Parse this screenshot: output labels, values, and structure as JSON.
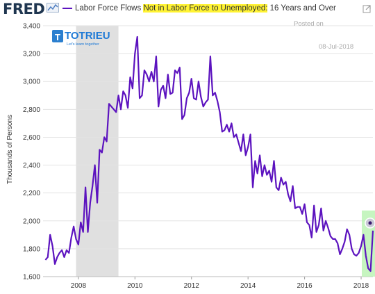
{
  "header": {
    "logo": "FRED",
    "title_parts": [
      "Labor Force Flows ",
      "Not in Labor Force to Unemployed:",
      " 16 Years and Over"
    ],
    "expand_icon": "expand-icon",
    "chart_icon": "line-chart-icon"
  },
  "annotations": {
    "posted_on": "Posted on",
    "date": "08-Jul-2018"
  },
  "watermark": {
    "name": "TOTRIEU",
    "tagline": "Let's learn together"
  },
  "colors": {
    "line": "#5c13bf",
    "recession": "#e0e0e0",
    "highlight": "#fff333",
    "latest_box": "#b8f2b0"
  },
  "chart_data": {
    "type": "line",
    "title": "Labor Force Flows Not in Labor Force to Unemployed: 16 Years and Over",
    "ylabel": "Thousands of Persons",
    "xlabel": "",
    "xlim": [
      "2006-10",
      "2018-06"
    ],
    "ylim": [
      1600,
      3400
    ],
    "y_ticks": [
      1600,
      1800,
      2000,
      2200,
      2400,
      2600,
      2800,
      3000,
      3200,
      3400
    ],
    "y_tick_labels": [
      "1,600",
      "1,800",
      "2,000",
      "2,200",
      "2,400",
      "2,600",
      "2,800",
      "3,000",
      "3,200",
      "3,400"
    ],
    "x_tick_labels": [
      "2008",
      "2010",
      "2012",
      "2014",
      "2016",
      "2018"
    ],
    "grid": true,
    "recession": {
      "start": "2007-12",
      "end": "2009-06"
    },
    "series": [
      {
        "start": "2006-11",
        "frequency": "monthly",
        "values": [
          1720,
          1740,
          1900,
          1820,
          1690,
          1740,
          1770,
          1790,
          1740,
          1790,
          1770,
          1880,
          1960,
          1870,
          1830,
          1990,
          1920,
          2240,
          1920,
          2130,
          2250,
          2400,
          2130,
          2510,
          2490,
          2600,
          2570,
          2840,
          2820,
          2800,
          2780,
          2900,
          2800,
          2930,
          2900,
          2810,
          3030,
          2950,
          3200,
          3320,
          2880,
          2900,
          3080,
          3050,
          3000,
          3070,
          3000,
          3180,
          2820,
          2940,
          2970,
          2880,
          3050,
          2910,
          2920,
          3080,
          3060,
          3100,
          2730,
          2760,
          2880,
          2920,
          3020,
          2880,
          2870,
          3000,
          2890,
          2820,
          2850,
          2870,
          3180,
          2900,
          2920,
          2860,
          2780,
          2640,
          2650,
          2690,
          2640,
          2700,
          2600,
          2620,
          2560,
          2500,
          2620,
          2470,
          2530,
          2620,
          2240,
          2430,
          2340,
          2470,
          2320,
          2400,
          2330,
          2360,
          2280,
          2430,
          2240,
          2220,
          2310,
          2260,
          2280,
          2190,
          2140,
          2250,
          2090,
          2100,
          2100,
          2050,
          2120,
          1990,
          1970,
          1880,
          2110,
          1920,
          1970,
          2090,
          1930,
          2000,
          1950,
          1890,
          1870,
          1870,
          1840,
          1760,
          1800,
          1850,
          1940,
          1900,
          1800,
          1760,
          1750,
          1770,
          1820,
          1900,
          1750,
          1660,
          1640,
          1930
        ]
      }
    ]
  }
}
